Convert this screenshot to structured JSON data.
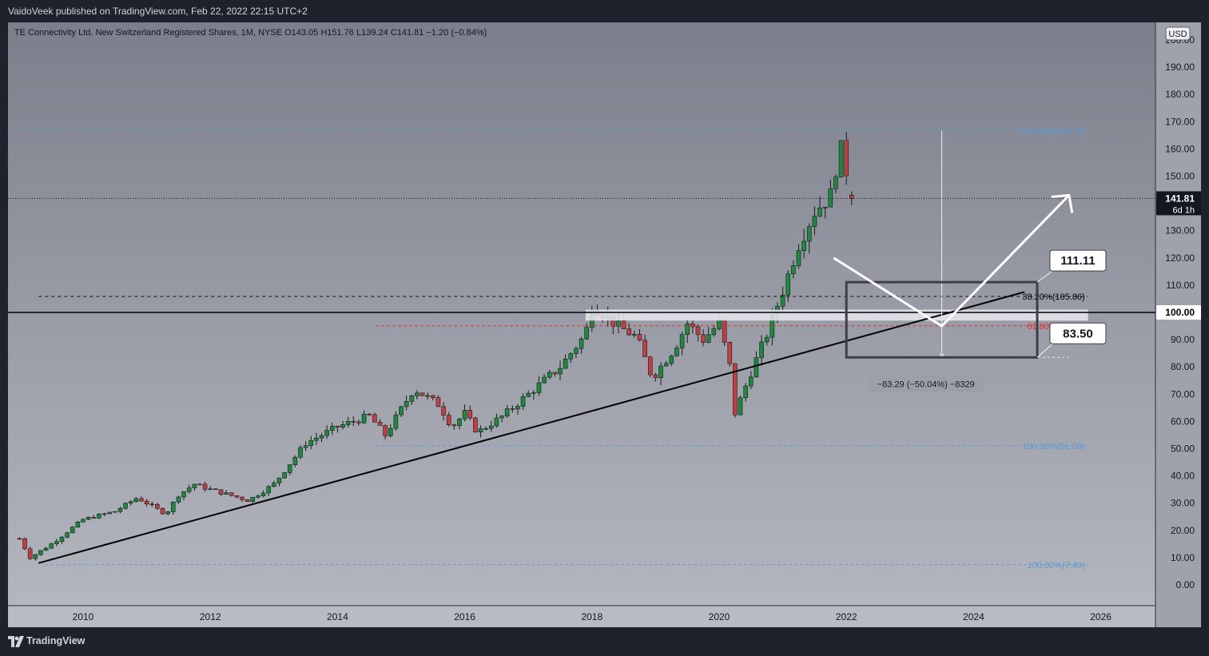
{
  "publisher": "VaidoVeek published on TradingView.com, Feb 22, 2022 22:15 UTC+2",
  "symbol_header": "TE Connectivity Ltd. New Switzerland Registered Shares, 1M, NYSE  O143.05  H151.76  L139.24  C141.81  −1.20 (−0.84%)",
  "currency": "USD",
  "footer_brand": "TradingView",
  "colors": {
    "up": "#1b8a3e",
    "down": "#c23e43",
    "fib_blue": "#5b9bd5",
    "fib_red": "#e03131",
    "black": "#000000"
  },
  "chart_data": {
    "type": "candlestick",
    "timeframe": "1M",
    "ylim": [
      -8,
      212
    ],
    "xlim": [
      2009.0,
      2027.0
    ],
    "x_ticks": [
      "2010",
      "2012",
      "2014",
      "2016",
      "2018",
      "2020",
      "2022",
      "2024",
      "2026"
    ],
    "y_ticks": [
      "200.00",
      "190.00",
      "180.00",
      "170.00",
      "160.00",
      "150.00",
      "140.00",
      "130.00",
      "120.00",
      "110.00",
      "100.00",
      "90.00",
      "80.00",
      "70.00",
      "60.00",
      "50.00",
      "40.00",
      "30.00",
      "20.00",
      "10.00",
      "0.00"
    ],
    "price_tag": {
      "value": 141.81,
      "label": "141.81",
      "countdown": "6d 1h"
    },
    "level_tags": [
      {
        "value": 100,
        "label": "100.00"
      }
    ],
    "fib_levels": [
      {
        "label": "100.00%(166.73)",
        "value": 166.73,
        "color": "#5b9bd5"
      },
      {
        "label": "38.20%(105.86)",
        "value": 105.86,
        "color": "#000000"
      },
      {
        "label": "61.80%(95.08)",
        "value": 95.08,
        "color": "#e03131"
      },
      {
        "label": "100.00%(51.03)",
        "value": 51.03,
        "color": "#5b9bd5"
      },
      {
        "label": "100.00%(7.40)",
        "value": 7.4,
        "color": "#5b9bd5"
      }
    ],
    "measure_label": "−83.29 (−50.04%) −8329",
    "callouts": [
      {
        "label": "111.11",
        "value": 111.11
      },
      {
        "label": "83.50",
        "value": 83.5
      }
    ],
    "waypoints": [
      {
        "t": 2009.0,
        "p": 17
      },
      {
        "t": 2009.17,
        "p": 10
      },
      {
        "t": 2009.5,
        "p": 15
      },
      {
        "t": 2010.0,
        "p": 24
      },
      {
        "t": 2010.5,
        "p": 27
      },
      {
        "t": 2010.85,
        "p": 32
      },
      {
        "t": 2011.3,
        "p": 26
      },
      {
        "t": 2011.5,
        "p": 33
      },
      {
        "t": 2011.75,
        "p": 37
      },
      {
        "t": 2012.0,
        "p": 35
      },
      {
        "t": 2012.6,
        "p": 31
      },
      {
        "t": 2013.0,
        "p": 37
      },
      {
        "t": 2013.5,
        "p": 52
      },
      {
        "t": 2014.0,
        "p": 58
      },
      {
        "t": 2014.5,
        "p": 62
      },
      {
        "t": 2014.75,
        "p": 55
      },
      {
        "t": 2015.2,
        "p": 72
      },
      {
        "t": 2015.6,
        "p": 66
      },
      {
        "t": 2015.8,
        "p": 58
      },
      {
        "t": 2016.0,
        "p": 63
      },
      {
        "t": 2016.2,
        "p": 56
      },
      {
        "t": 2016.6,
        "p": 62
      },
      {
        "t": 2017.0,
        "p": 70
      },
      {
        "t": 2017.5,
        "p": 80
      },
      {
        "t": 2017.9,
        "p": 92
      },
      {
        "t": 2018.0,
        "p": 103
      },
      {
        "t": 2018.4,
        "p": 95
      },
      {
        "t": 2018.7,
        "p": 91
      },
      {
        "t": 2018.95,
        "p": 76
      },
      {
        "t": 2019.3,
        "p": 87
      },
      {
        "t": 2019.5,
        "p": 96
      },
      {
        "t": 2019.75,
        "p": 90
      },
      {
        "t": 2020.0,
        "p": 96
      },
      {
        "t": 2020.17,
        "p": 80
      },
      {
        "t": 2020.25,
        "p": 63
      },
      {
        "t": 2020.5,
        "p": 78
      },
      {
        "t": 2020.75,
        "p": 92
      },
      {
        "t": 2021.0,
        "p": 108
      },
      {
        "t": 2021.25,
        "p": 125
      },
      {
        "t": 2021.5,
        "p": 137
      },
      {
        "t": 2021.75,
        "p": 143
      },
      {
        "t": 2021.9,
        "p": 161
      },
      {
        "t": 2022.0,
        "p": 152
      },
      {
        "t": 2022.15,
        "p": 141.81
      }
    ]
  }
}
